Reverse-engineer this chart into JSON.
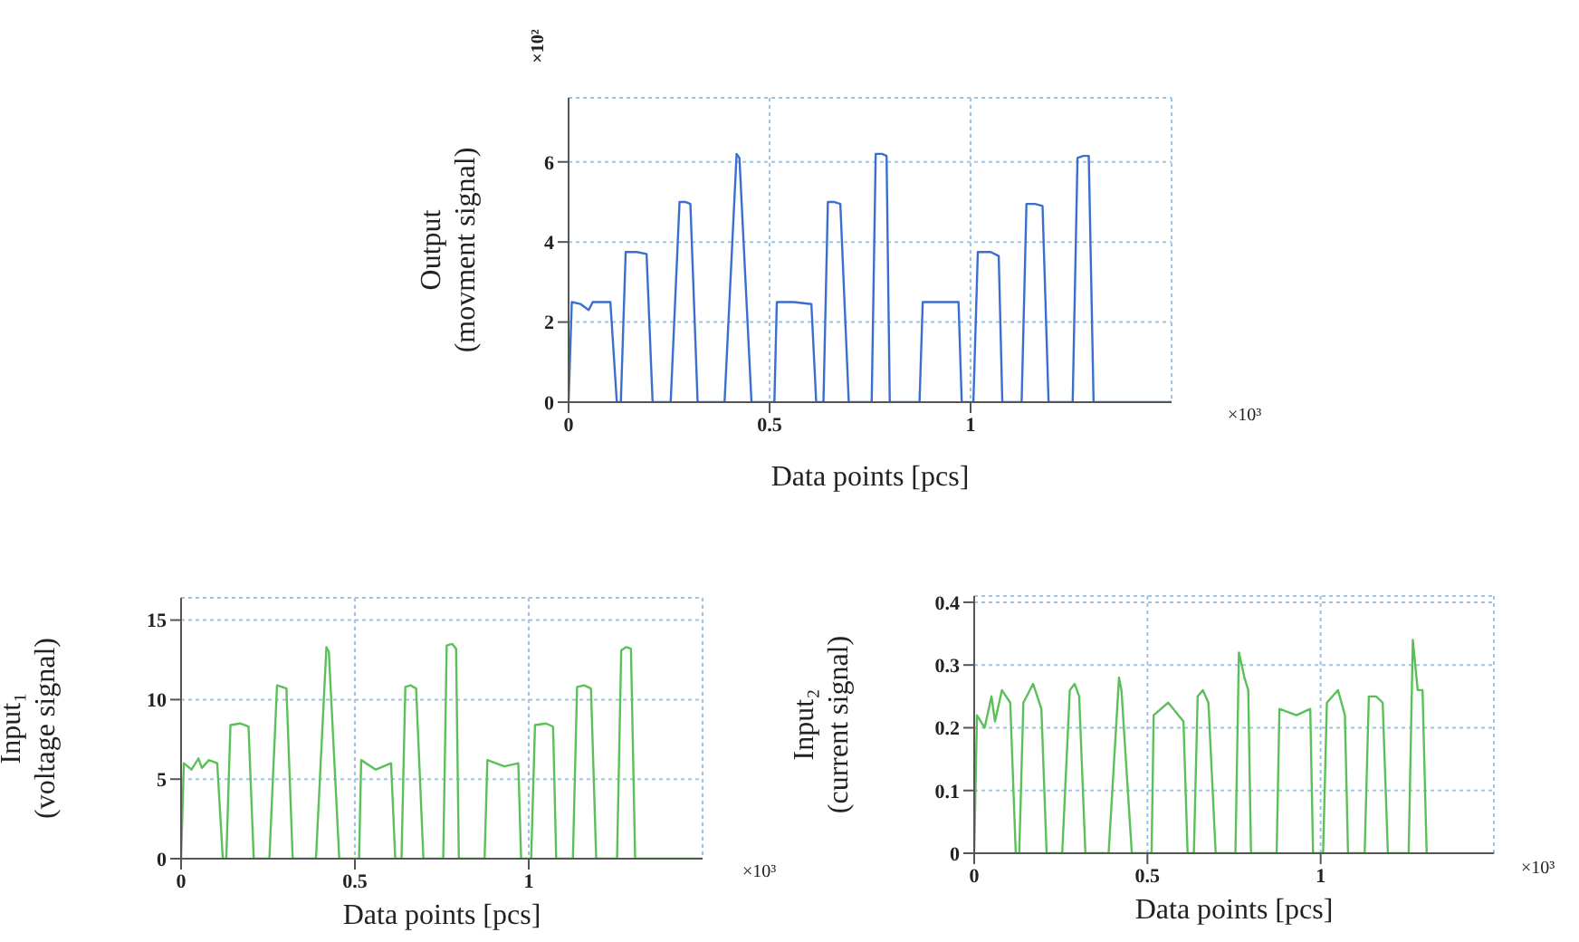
{
  "chart_data": [
    {
      "type": "line",
      "xlabel": "Data points [pcs]",
      "ylabel": "Output\n(movment signal)",
      "annotations": [
        "×10²",
        "×10³"
      ],
      "xlim": [
        0,
        1.5
      ],
      "xticks": [
        0,
        0.5,
        1
      ],
      "ylim": [
        0,
        7.6
      ],
      "yticks": [
        0,
        2,
        4,
        6
      ],
      "grid": true,
      "marker": "none",
      "line_style": "solid",
      "series": [
        {
          "color": "#3a6fd0",
          "x": [
            0,
            0.008,
            0.03,
            0.05,
            0.06,
            0.08,
            0.104,
            0.12,
            0.13,
            0.142,
            0.17,
            0.194,
            0.209,
            0.254,
            0.276,
            0.29,
            0.303,
            0.321,
            0.388,
            0.418,
            0.425,
            0.455,
            0.512,
            0.518,
            0.56,
            0.604,
            0.616,
            0.634,
            0.645,
            0.66,
            0.676,
            0.697,
            0.754,
            0.764,
            0.78,
            0.791,
            0.799,
            0.873,
            0.881,
            0.93,
            0.97,
            0.978,
            1.007,
            1.018,
            1.05,
            1.07,
            1.079,
            1.127,
            1.139,
            1.16,
            1.179,
            1.194,
            1.254,
            1.266,
            1.28,
            1.294,
            1.306,
            1.5
          ],
          "values": [
            0,
            2.5,
            2.45,
            2.3,
            2.5,
            2.5,
            2.5,
            0,
            0,
            3.75,
            3.75,
            3.7,
            0,
            0,
            5.0,
            5.0,
            4.95,
            0,
            0,
            6.2,
            6.1,
            0,
            0,
            2.5,
            2.5,
            2.45,
            0,
            0,
            5.0,
            5.0,
            4.95,
            0,
            0,
            6.2,
            6.2,
            6.15,
            0,
            0,
            2.5,
            2.5,
            2.5,
            0,
            0,
            3.75,
            3.75,
            3.65,
            0,
            0,
            4.95,
            4.95,
            4.9,
            0,
            0,
            6.1,
            6.15,
            6.15,
            0,
            0
          ]
        }
      ]
    },
    {
      "type": "line",
      "xlabel": "Data points [pcs]",
      "ylabel": "Input₁\n(voltage signal)",
      "annotations": [
        "×10³"
      ],
      "xlim": [
        0,
        1.5
      ],
      "xticks": [
        0,
        0.5,
        1
      ],
      "ylim": [
        0,
        16.4
      ],
      "yticks": [
        0,
        5,
        10,
        15
      ],
      "grid": true,
      "marker": "none",
      "line_style": "solid",
      "series": [
        {
          "color": "#5cc05a",
          "x": [
            0,
            0.008,
            0.03,
            0.05,
            0.06,
            0.08,
            0.104,
            0.12,
            0.13,
            0.142,
            0.17,
            0.194,
            0.209,
            0.254,
            0.276,
            0.29,
            0.303,
            0.321,
            0.388,
            0.418,
            0.425,
            0.455,
            0.512,
            0.518,
            0.56,
            0.604,
            0.616,
            0.634,
            0.645,
            0.66,
            0.676,
            0.697,
            0.754,
            0.764,
            0.78,
            0.791,
            0.799,
            0.873,
            0.881,
            0.93,
            0.97,
            0.978,
            1.007,
            1.018,
            1.05,
            1.07,
            1.079,
            1.127,
            1.139,
            1.16,
            1.179,
            1.194,
            1.254,
            1.266,
            1.28,
            1.294,
            1.306,
            1.5
          ],
          "values": [
            0,
            6.0,
            5.6,
            6.3,
            5.7,
            6.2,
            6.0,
            0,
            0,
            8.4,
            8.5,
            8.3,
            0,
            0,
            10.9,
            10.8,
            10.7,
            0,
            0,
            13.3,
            13.0,
            0,
            0,
            6.2,
            5.6,
            6.0,
            0,
            0,
            10.8,
            10.9,
            10.7,
            0,
            0,
            13.4,
            13.5,
            13.2,
            0,
            0,
            6.2,
            5.8,
            6.0,
            0,
            0,
            8.4,
            8.5,
            8.3,
            0,
            0,
            10.8,
            10.9,
            10.7,
            0,
            0,
            13.1,
            13.3,
            13.2,
            0,
            0
          ]
        }
      ]
    },
    {
      "type": "line",
      "xlabel": "Data points [pcs]",
      "ylabel": "Input₂\n(current signal)",
      "annotations": [
        "×10³"
      ],
      "xlim": [
        0,
        1.5
      ],
      "xticks": [
        0,
        0.5,
        1
      ],
      "ylim": [
        0,
        0.41
      ],
      "yticks": [
        0,
        0.1,
        0.2,
        0.3,
        0.4
      ],
      "grid": true,
      "marker": "none",
      "line_style": "solid",
      "series": [
        {
          "color": "#5cc05a",
          "x": [
            0,
            0.008,
            0.03,
            0.05,
            0.06,
            0.08,
            0.104,
            0.12,
            0.13,
            0.142,
            0.17,
            0.194,
            0.209,
            0.254,
            0.276,
            0.29,
            0.303,
            0.321,
            0.388,
            0.418,
            0.425,
            0.455,
            0.512,
            0.518,
            0.56,
            0.604,
            0.616,
            0.634,
            0.645,
            0.66,
            0.676,
            0.697,
            0.754,
            0.764,
            0.78,
            0.791,
            0.799,
            0.873,
            0.881,
            0.93,
            0.97,
            0.978,
            1.007,
            1.018,
            1.05,
            1.07,
            1.079,
            1.127,
            1.139,
            1.16,
            1.179,
            1.194,
            1.254,
            1.266,
            1.28,
            1.294,
            1.306
          ],
          "values": [
            0,
            0.22,
            0.2,
            0.25,
            0.21,
            0.26,
            0.24,
            0,
            0,
            0.24,
            0.27,
            0.23,
            0,
            0,
            0.26,
            0.27,
            0.25,
            0,
            0,
            0.28,
            0.26,
            0,
            0,
            0.22,
            0.24,
            0.21,
            0,
            0,
            0.25,
            0.26,
            0.24,
            0,
            0,
            0.32,
            0.28,
            0.26,
            0,
            0,
            0.23,
            0.22,
            0.23,
            0,
            0,
            0.24,
            0.26,
            0.22,
            0,
            0,
            0.25,
            0.25,
            0.24,
            0,
            0,
            0.34,
            0.26,
            0.26,
            0
          ]
        }
      ]
    }
  ]
}
